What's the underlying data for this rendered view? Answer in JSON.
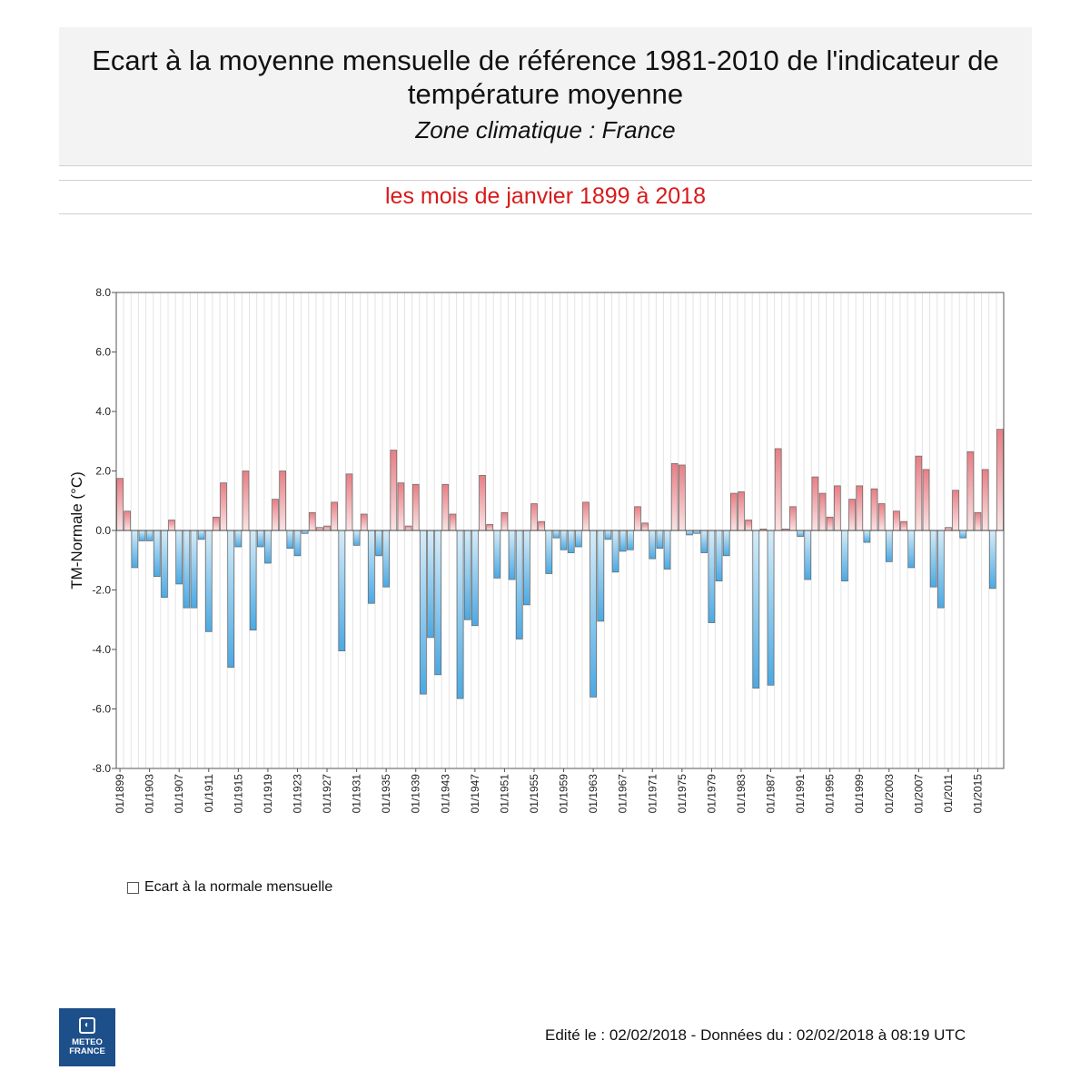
{
  "header": {
    "title": "Ecart à la moyenne mensuelle de référence 1981-2010 de l'indicateur de température moyenne",
    "zone": "Zone climatique : France"
  },
  "subtitle": "les mois de janvier 1899 à 2018",
  "legend": {
    "label": "Ecart à la normale mensuelle"
  },
  "logo": {
    "line1": "METEO",
    "line2": "FRANCE"
  },
  "footer": {
    "edited": "Edité le : 02/02/2018 - Données du : 02/02/2018 à 08:19 UTC"
  },
  "colors": {
    "positive": "#e87e84",
    "negative": "#4aa9e4",
    "frame": "#555555",
    "grid": "#e4e4e4"
  },
  "chart_data": {
    "type": "bar",
    "ylabel": "TM-Normale (°C)",
    "ylim": [
      -8,
      8
    ],
    "yticks": [
      "8.0",
      "6.0",
      "4.0",
      "2.0",
      "0.0",
      "-2.0",
      "-4.0",
      "-6.0",
      "-8.0"
    ],
    "ytick_values": [
      8,
      6,
      4,
      2,
      0,
      -2,
      -4,
      -6,
      -8
    ],
    "grid": true,
    "start_year": 1899,
    "xtick_labels": [
      "01/1899",
      "01/1903",
      "01/1907",
      "01/1911",
      "01/1915",
      "01/1919",
      "01/1923",
      "01/1927",
      "01/1931",
      "01/1935",
      "01/1939",
      "01/1943",
      "01/1947",
      "01/1951",
      "01/1955",
      "01/1959",
      "01/1963",
      "01/1967",
      "01/1971",
      "01/1975",
      "01/1979",
      "01/1983",
      "01/1987",
      "01/1991",
      "01/1995",
      "01/1999",
      "01/2003",
      "01/2007",
      "01/2011",
      "01/2015"
    ],
    "values": [
      1.75,
      0.65,
      -1.25,
      -0.35,
      -0.35,
      -1.55,
      -2.25,
      0.35,
      -1.8,
      -2.6,
      -2.6,
      -0.3,
      -3.4,
      0.45,
      1.6,
      -4.6,
      -0.55,
      2.0,
      -3.35,
      -0.55,
      -1.1,
      1.05,
      2.0,
      -0.6,
      -0.85,
      -0.1,
      0.6,
      0.1,
      0.15,
      0.95,
      -4.05,
      1.9,
      -0.5,
      0.55,
      -2.45,
      -0.85,
      -1.9,
      2.7,
      1.6,
      0.15,
      1.55,
      -5.5,
      -3.6,
      -4.85,
      1.55,
      0.55,
      -5.65,
      -3.0,
      -3.2,
      1.85,
      0.2,
      -1.6,
      0.6,
      -1.65,
      -3.65,
      -2.5,
      0.9,
      0.3,
      -1.45,
      -0.25,
      -0.65,
      -0.75,
      -0.55,
      0.95,
      -5.6,
      -3.05,
      -0.3,
      -1.4,
      -0.7,
      -0.65,
      0.8,
      0.25,
      -0.95,
      -0.6,
      -1.3,
      2.25,
      2.2,
      -0.15,
      -0.1,
      -0.75,
      -3.1,
      -1.7,
      -0.85,
      1.25,
      1.3,
      0.35,
      -5.3,
      0.05,
      -5.2,
      2.75,
      0.05,
      0.8,
      -0.2,
      -1.65,
      1.8,
      1.25,
      0.45,
      1.5,
      -1.7,
      1.05,
      1.5,
      -0.4,
      1.4,
      0.9,
      -1.05,
      0.65,
      0.3,
      -1.25,
      2.5,
      2.05,
      -1.9,
      -2.6,
      0.1,
      1.35,
      -0.25,
      2.65,
      0.6,
      2.05,
      -1.95,
      3.4
    ]
  }
}
